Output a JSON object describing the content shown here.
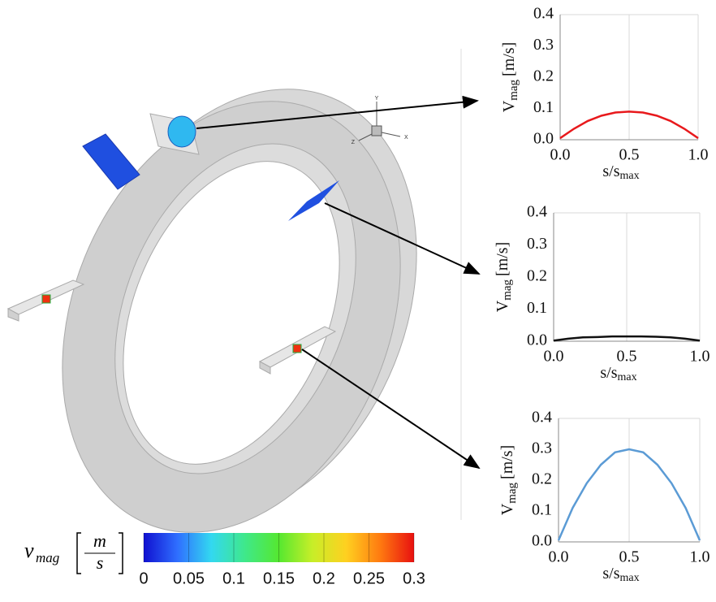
{
  "chart_data": [
    {
      "type": "line",
      "ylabel": {
        "main": "V",
        "sub": "mag",
        "unit": "[m/s]"
      },
      "xlabel": {
        "main": "s/s",
        "sub": "max"
      },
      "x": [
        0,
        0.1,
        0.2,
        0.3,
        0.4,
        0.5,
        0.6,
        0.7,
        0.8,
        0.9,
        1.0
      ],
      "series": [
        {
          "color": "#e8191c",
          "values": [
            0.005,
            0.035,
            0.06,
            0.077,
            0.087,
            0.09,
            0.087,
            0.077,
            0.06,
            0.035,
            0.005
          ]
        }
      ],
      "xlim": [
        0,
        1
      ],
      "ylim": [
        0,
        0.4
      ],
      "xticks": [
        {
          "value": 0,
          "label": "0.0"
        },
        0.5,
        {
          "value": 1,
          "label": "1.0"
        }
      ],
      "yticks": [
        {
          "value": 0,
          "label": "0.0"
        },
        0.1,
        0.2,
        0.3,
        0.4
      ],
      "grid": "x"
    },
    {
      "type": "line",
      "ylabel": {
        "main": "V",
        "sub": "mag",
        "unit": "[m/s]"
      },
      "xlabel": {
        "main": "s/s",
        "sub": "max"
      },
      "x": [
        0,
        0.1,
        0.2,
        0.3,
        0.4,
        0.5,
        0.6,
        0.7,
        0.8,
        0.9,
        1.0
      ],
      "series": [
        {
          "color": "#111111",
          "values": [
            0.002,
            0.008,
            0.012,
            0.013,
            0.015,
            0.015,
            0.015,
            0.014,
            0.012,
            0.008,
            0.002
          ]
        }
      ],
      "xlim": [
        0,
        1
      ],
      "ylim": [
        0,
        0.4
      ],
      "xticks": [
        {
          "value": 0,
          "label": "0.0"
        },
        0.5,
        {
          "value": 1,
          "label": "1.0"
        }
      ],
      "yticks": [
        {
          "value": 0,
          "label": "0.0"
        },
        0.1,
        0.2,
        0.3,
        0.4
      ],
      "grid": "x"
    },
    {
      "type": "line",
      "ylabel": {
        "main": "V",
        "sub": "mag",
        "unit": "[m/s]"
      },
      "xlabel": {
        "main": "s/s",
        "sub": "max"
      },
      "x": [
        0,
        0.1,
        0.2,
        0.3,
        0.4,
        0.5,
        0.6,
        0.7,
        0.8,
        0.9,
        1.0
      ],
      "series": [
        {
          "color": "#5b9bd5",
          "values": [
            0.005,
            0.11,
            0.19,
            0.25,
            0.29,
            0.3,
            0.29,
            0.25,
            0.19,
            0.11,
            0.005
          ]
        }
      ],
      "xlim": [
        0,
        1
      ],
      "ylim": [
        0,
        0.4
      ],
      "xticks": [
        {
          "value": 0,
          "label": "0.0"
        },
        0.5,
        {
          "value": 1,
          "label": "1.0"
        }
      ],
      "yticks": [
        {
          "value": 0,
          "label": "0.0"
        },
        0.1,
        0.2,
        0.3,
        0.4
      ],
      "grid": "x"
    }
  ],
  "colorbar": {
    "label": {
      "main": "v",
      "sub": "mag",
      "num": "m",
      "den": "s"
    },
    "lim": [
      0,
      0.3
    ],
    "ticks": [
      0,
      0.05,
      0.1,
      0.15,
      0.2,
      0.25,
      0.3
    ],
    "colors": [
      "#1010d0",
      "#2f6fff",
      "#33d8f0",
      "#3fe88a",
      "#55e830",
      "#c8ee28",
      "#ffd020",
      "#ff7a10",
      "#e81010"
    ]
  },
  "triad": {
    "y": "Y",
    "x": "X",
    "z": "Z"
  }
}
